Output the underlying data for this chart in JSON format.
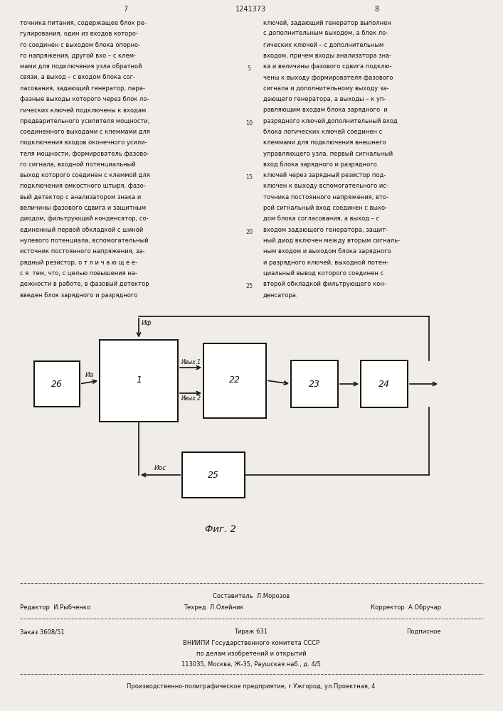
{
  "page_width": 7.07,
  "page_height": 10.0,
  "bg_color": "#f0ede8",
  "header": {
    "left_num": "7",
    "center_num": "1241373",
    "right_num": "8"
  },
  "text_left": "точника питания, содержащее блок ре-\nгулирования, один из входов которо-\nго соединен с выходом блока опорно-\nго напряжения, другой вхо – с клем-\nмами для подключения узла обратной\nсвязи, а выход – с входом блока сог-\nласования, задающий генератор, пара-\nфазные выходы которого через блок ло-\nгических ключей подключены к входам\nпредварительного усилителя мощности,\nсоединенного выходами с клеммами для\nподключения входов оконечного усили-\nтеля мощности, формирователь фазово-\nго сигнала, входной потенциальный\nвыход которого соединен с клеммой для\nподключения емкостного штыря, фазо-\nвый детектор с анализатором знака и\nвеличины фазового сдвига и защитным\nдиодом, фильтрующий конденсатор, со-\nединенный первой обкладкой с шиной\nнулевого потенциала, вспомогательный\nисточник постоянного напряжения, за-\nрядный резистор, о т л и ч а ю щ е е-\nс я  тем, что, с целью повышения на-\nдежности в работе, в фазовый детектор\nвведен блок зарядного и разрядного",
  "text_right": "ключей, задающий генератор выполнен\nс дополнительным выходом, а блок ло-\nгических ключей – с дополнительным\nвходом, причем входы анализатора зна-\nка и величины фазового сдвига подклю-\nчены к выходу формирователя фазового\nсигнала и дополнительному выходу за-\nдающего генератора, а выходы – к уп-\nравляющим входам блока зарядного  и\nразрядного ключей,дополнительный вход\nблока логических ключей соединен с\nклеммами для подключения внешнего\nуправляющего узла, первый сигнальный\nвход блока зарядного и разрядного\nключей через зарядный резистор под-\nключен к выходу вспомогательного ис-\nточника постоянного напряжения, вто-\nрой сигнальный вход соединен с выхо-\nдом блока согласования, а выход – с\nвходом задающего генератора, защит-\nный диод включен между вторым сигналь-\nным входом и выходом блока зарядного\nи разрядного ключей, выходной потен-\nциальный вывод которого соединен с\nвторой обкладкой фильтрующего кон-\nденсатора.",
  "line_numbers": [
    5,
    10,
    15,
    20,
    25
  ],
  "diagram_caption": "Фиг. 2",
  "footer_line1_center": "Составитель  Л.Морозов",
  "footer_line2_left": "Редактор  И.Рыбченко",
  "footer_line2_center": "Техред  Л.Олейник",
  "footer_line2_right": "Корректор  А.Обручар",
  "footer_line3_left": "Заказ 3608/51",
  "footer_line3_center": "Тираж 631",
  "footer_line3_right": "Подписное",
  "footer_line4": "ВНИИПИ Государственного комитета СССР",
  "footer_line5": "по делам изобретений и открытий",
  "footer_line6": "113035, Москва, Ж-35, Раушская наб., д. 4/5",
  "footer_line7": "Производственно-полиграфическое предприятие, г.Ужгород, ул.Проектная, 4"
}
